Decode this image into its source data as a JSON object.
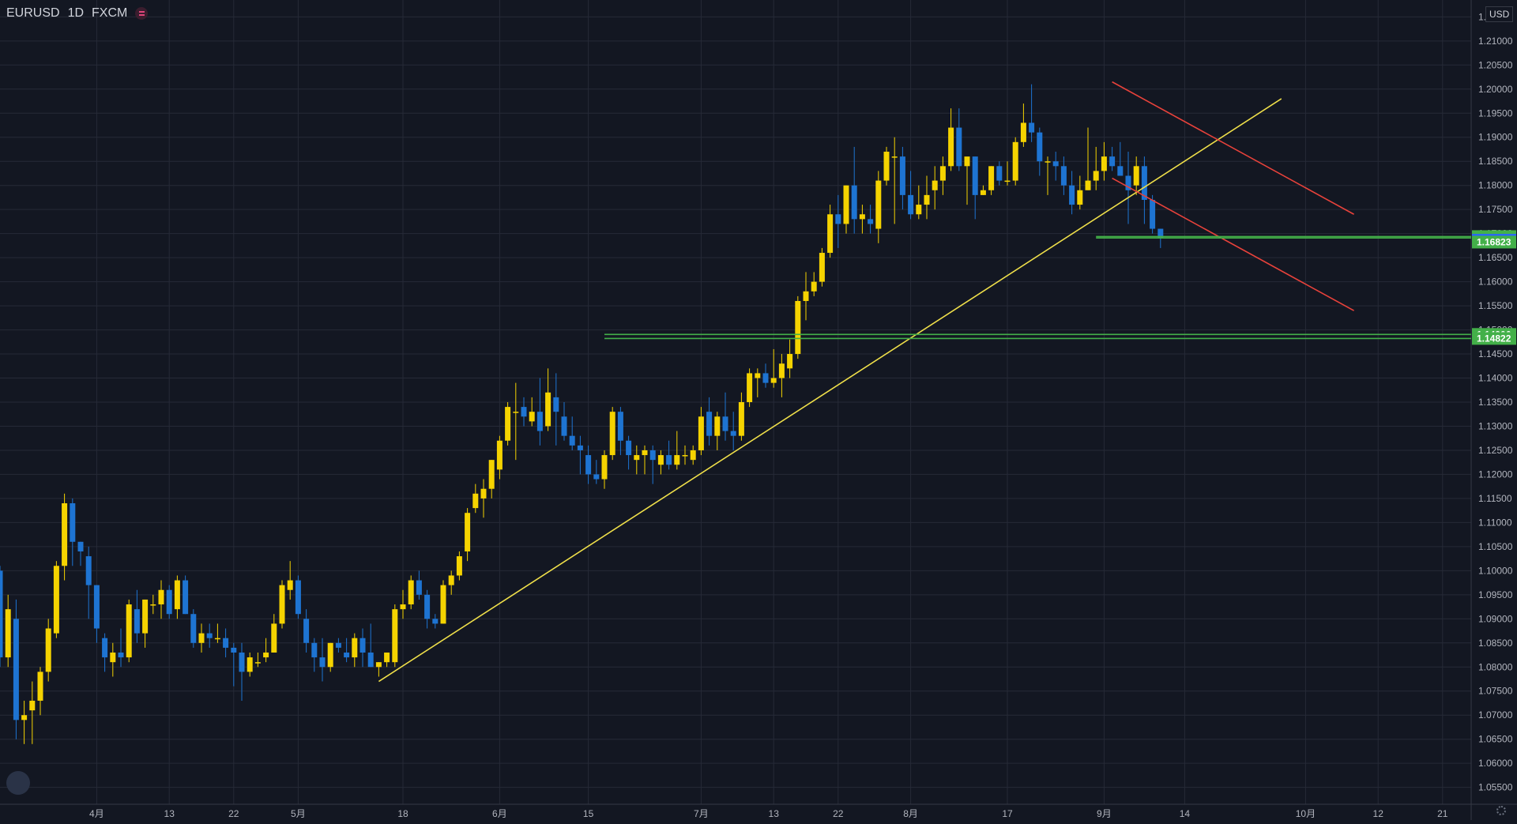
{
  "header": {
    "symbol": "EURUSD",
    "interval": "1D",
    "source": "FXCM",
    "currency_badge": "USD"
  },
  "colors": {
    "background": "#131722",
    "grid": "#262a37",
    "axis_text": "#b2b5be",
    "candle_up": "#f5d300",
    "candle_down": "#1e74d2",
    "trendline": "#f0e04a",
    "channel": "#e8423b",
    "level": "#43b049",
    "current_price": "#2962ff"
  },
  "chart_data": {
    "type": "candlestick",
    "title": "",
    "xlabel": "",
    "ylabel": "",
    "ylim": [
      1.0515,
      1.2185
    ],
    "y_ticks": [
      "1.05500",
      "1.06000",
      "1.06500",
      "1.07000",
      "1.07500",
      "1.08000",
      "1.08500",
      "1.09000",
      "1.09500",
      "1.10000",
      "1.10500",
      "1.11000",
      "1.11500",
      "1.12000",
      "1.12500",
      "1.13000",
      "1.13500",
      "1.14000",
      "1.14500",
      "1.15000",
      "1.15500",
      "1.16000",
      "1.16500",
      "1.17000",
      "1.17500",
      "1.18000",
      "1.18500",
      "1.19000",
      "1.19500",
      "1.20000",
      "1.20500",
      "1.21000",
      "1.21500"
    ],
    "x_tick_labels": [
      {
        "label": "4月",
        "bar": 12
      },
      {
        "label": "13",
        "bar": 21
      },
      {
        "label": "22",
        "bar": 29
      },
      {
        "label": "5月",
        "bar": 37
      },
      {
        "label": "18",
        "bar": 50
      },
      {
        "label": "6月",
        "bar": 62
      },
      {
        "label": "15",
        "bar": 73
      },
      {
        "label": "7月",
        "bar": 87
      },
      {
        "label": "13",
        "bar": 96
      },
      {
        "label": "22",
        "bar": 104
      },
      {
        "label": "8月",
        "bar": 113
      },
      {
        "label": "17",
        "bar": 125
      },
      {
        "label": "9月",
        "bar": 137
      },
      {
        "label": "14",
        "bar": 147
      },
      {
        "label": "10月",
        "bar": 162
      },
      {
        "label": "12",
        "bar": 171
      },
      {
        "label": "21",
        "bar": 179
      }
    ],
    "candles": [
      [
        1.1,
        1.101,
        1.08,
        1.082
      ],
      [
        1.082,
        1.095,
        1.08,
        1.092
      ],
      [
        1.09,
        1.094,
        1.065,
        1.069
      ],
      [
        1.069,
        1.073,
        1.064,
        1.07
      ],
      [
        1.071,
        1.077,
        1.064,
        1.073
      ],
      [
        1.073,
        1.08,
        1.07,
        1.079
      ],
      [
        1.079,
        1.09,
        1.077,
        1.088
      ],
      [
        1.087,
        1.102,
        1.086,
        1.101
      ],
      [
        1.101,
        1.116,
        1.098,
        1.114
      ],
      [
        1.114,
        1.115,
        1.101,
        1.106
      ],
      [
        1.106,
        1.106,
        1.101,
        1.104
      ],
      [
        1.103,
        1.105,
        1.09,
        1.097
      ],
      [
        1.097,
        1.097,
        1.085,
        1.088
      ],
      [
        1.086,
        1.087,
        1.079,
        1.082
      ],
      [
        1.081,
        1.085,
        1.078,
        1.083
      ],
      [
        1.083,
        1.088,
        1.08,
        1.082
      ],
      [
        1.082,
        1.094,
        1.081,
        1.093
      ],
      [
        1.092,
        1.096,
        1.085,
        1.087
      ],
      [
        1.087,
        1.094,
        1.084,
        1.094
      ],
      [
        1.093,
        1.095,
        1.091,
        1.093
      ],
      [
        1.093,
        1.098,
        1.09,
        1.096
      ],
      [
        1.096,
        1.097,
        1.09,
        1.091
      ],
      [
        1.092,
        1.099,
        1.09,
        1.098
      ],
      [
        1.098,
        1.099,
        1.091,
        1.091
      ],
      [
        1.091,
        1.092,
        1.084,
        1.085
      ],
      [
        1.085,
        1.089,
        1.083,
        1.087
      ],
      [
        1.087,
        1.089,
        1.084,
        1.086
      ],
      [
        1.086,
        1.089,
        1.085,
        1.086
      ],
      [
        1.086,
        1.088,
        1.082,
        1.084
      ],
      [
        1.084,
        1.085,
        1.076,
        1.083
      ],
      [
        1.083,
        1.085,
        1.073,
        1.079
      ],
      [
        1.079,
        1.083,
        1.078,
        1.082
      ],
      [
        1.081,
        1.083,
        1.08,
        1.081
      ],
      [
        1.082,
        1.086,
        1.081,
        1.083
      ],
      [
        1.083,
        1.091,
        1.083,
        1.089
      ],
      [
        1.089,
        1.098,
        1.088,
        1.097
      ],
      [
        1.096,
        1.102,
        1.094,
        1.098
      ],
      [
        1.098,
        1.099,
        1.09,
        1.091
      ],
      [
        1.09,
        1.092,
        1.083,
        1.085
      ],
      [
        1.085,
        1.086,
        1.079,
        1.082
      ],
      [
        1.082,
        1.086,
        1.077,
        1.08
      ],
      [
        1.08,
        1.085,
        1.079,
        1.085
      ],
      [
        1.085,
        1.086,
        1.083,
        1.084
      ],
      [
        1.083,
        1.086,
        1.081,
        1.082
      ],
      [
        1.082,
        1.087,
        1.08,
        1.086
      ],
      [
        1.086,
        1.088,
        1.08,
        1.083
      ],
      [
        1.083,
        1.089,
        1.08,
        1.08
      ],
      [
        1.08,
        1.081,
        1.078,
        1.081
      ],
      [
        1.081,
        1.083,
        1.08,
        1.083
      ],
      [
        1.081,
        1.093,
        1.08,
        1.092
      ],
      [
        1.092,
        1.096,
        1.09,
        1.093
      ],
      [
        1.093,
        1.099,
        1.092,
        1.098
      ],
      [
        1.098,
        1.1,
        1.094,
        1.095
      ],
      [
        1.095,
        1.096,
        1.088,
        1.09
      ],
      [
        1.09,
        1.091,
        1.088,
        1.089
      ],
      [
        1.089,
        1.098,
        1.089,
        1.097
      ],
      [
        1.097,
        1.1,
        1.095,
        1.099
      ],
      [
        1.099,
        1.104,
        1.098,
        1.103
      ],
      [
        1.104,
        1.113,
        1.102,
        1.112
      ],
      [
        1.113,
        1.118,
        1.112,
        1.116
      ],
      [
        1.115,
        1.119,
        1.111,
        1.117
      ],
      [
        1.117,
        1.123,
        1.115,
        1.123
      ],
      [
        1.121,
        1.128,
        1.119,
        1.127
      ],
      [
        1.127,
        1.135,
        1.126,
        1.134
      ],
      [
        1.133,
        1.139,
        1.123,
        1.133
      ],
      [
        1.134,
        1.136,
        1.13,
        1.132
      ],
      [
        1.131,
        1.136,
        1.13,
        1.133
      ],
      [
        1.133,
        1.14,
        1.126,
        1.129
      ],
      [
        1.13,
        1.142,
        1.129,
        1.137
      ],
      [
        1.136,
        1.141,
        1.126,
        1.133
      ],
      [
        1.132,
        1.135,
        1.127,
        1.128
      ],
      [
        1.128,
        1.132,
        1.125,
        1.126
      ],
      [
        1.126,
        1.128,
        1.12,
        1.125
      ],
      [
        1.124,
        1.126,
        1.118,
        1.12
      ],
      [
        1.12,
        1.123,
        1.118,
        1.119
      ],
      [
        1.119,
        1.125,
        1.117,
        1.124
      ],
      [
        1.124,
        1.134,
        1.123,
        1.133
      ],
      [
        1.133,
        1.134,
        1.124,
        1.127
      ],
      [
        1.127,
        1.128,
        1.121,
        1.124
      ],
      [
        1.123,
        1.126,
        1.12,
        1.124
      ],
      [
        1.124,
        1.126,
        1.12,
        1.125
      ],
      [
        1.125,
        1.126,
        1.118,
        1.123
      ],
      [
        1.122,
        1.125,
        1.12,
        1.124
      ],
      [
        1.124,
        1.127,
        1.121,
        1.122
      ],
      [
        1.122,
        1.129,
        1.121,
        1.124
      ],
      [
        1.124,
        1.126,
        1.122,
        1.124
      ],
      [
        1.123,
        1.126,
        1.122,
        1.125
      ],
      [
        1.125,
        1.134,
        1.124,
        1.132
      ],
      [
        1.133,
        1.136,
        1.126,
        1.128
      ],
      [
        1.128,
        1.133,
        1.125,
        1.132
      ],
      [
        1.132,
        1.137,
        1.127,
        1.129
      ],
      [
        1.129,
        1.133,
        1.125,
        1.128
      ],
      [
        1.128,
        1.137,
        1.127,
        1.135
      ],
      [
        1.135,
        1.142,
        1.134,
        1.141
      ],
      [
        1.14,
        1.142,
        1.136,
        1.141
      ],
      [
        1.141,
        1.143,
        1.138,
        1.139
      ],
      [
        1.139,
        1.146,
        1.138,
        1.14
      ],
      [
        1.14,
        1.145,
        1.136,
        1.143
      ],
      [
        1.142,
        1.148,
        1.14,
        1.145
      ],
      [
        1.145,
        1.157,
        1.144,
        1.156
      ],
      [
        1.156,
        1.162,
        1.152,
        1.158
      ],
      [
        1.158,
        1.162,
        1.157,
        1.16
      ],
      [
        1.16,
        1.167,
        1.159,
        1.166
      ],
      [
        1.166,
        1.176,
        1.165,
        1.174
      ],
      [
        1.174,
        1.178,
        1.167,
        1.172
      ],
      [
        1.172,
        1.18,
        1.17,
        1.18
      ],
      [
        1.18,
        1.188,
        1.17,
        1.173
      ],
      [
        1.173,
        1.176,
        1.17,
        1.174
      ],
      [
        1.173,
        1.176,
        1.17,
        1.172
      ],
      [
        1.171,
        1.183,
        1.168,
        1.181
      ],
      [
        1.181,
        1.188,
        1.18,
        1.187
      ],
      [
        1.186,
        1.19,
        1.172,
        1.186
      ],
      [
        1.186,
        1.188,
        1.175,
        1.178
      ],
      [
        1.178,
        1.183,
        1.173,
        1.174
      ],
      [
        1.174,
        1.18,
        1.173,
        1.176
      ],
      [
        1.176,
        1.182,
        1.173,
        1.178
      ],
      [
        1.179,
        1.184,
        1.175,
        1.181
      ],
      [
        1.181,
        1.186,
        1.178,
        1.184
      ],
      [
        1.184,
        1.196,
        1.183,
        1.192
      ],
      [
        1.192,
        1.196,
        1.183,
        1.184
      ],
      [
        1.184,
        1.185,
        1.176,
        1.186
      ],
      [
        1.186,
        1.186,
        1.173,
        1.178
      ],
      [
        1.178,
        1.18,
        1.178,
        1.179
      ],
      [
        1.179,
        1.184,
        1.178,
        1.184
      ],
      [
        1.184,
        1.185,
        1.18,
        1.181
      ],
      [
        1.181,
        1.185,
        1.18,
        1.181
      ],
      [
        1.181,
        1.19,
        1.18,
        1.189
      ],
      [
        1.189,
        1.197,
        1.188,
        1.193
      ],
      [
        1.193,
        1.201,
        1.189,
        1.191
      ],
      [
        1.191,
        1.192,
        1.182,
        1.185
      ],
      [
        1.185,
        1.186,
        1.178,
        1.185
      ],
      [
        1.185,
        1.187,
        1.181,
        1.184
      ],
      [
        1.184,
        1.186,
        1.178,
        1.18
      ],
      [
        1.18,
        1.183,
        1.174,
        1.176
      ],
      [
        1.176,
        1.182,
        1.175,
        1.179
      ],
      [
        1.179,
        1.192,
        1.179,
        1.181
      ],
      [
        1.181,
        1.188,
        1.179,
        1.183
      ],
      [
        1.183,
        1.189,
        1.181,
        1.186
      ],
      [
        1.186,
        1.188,
        1.183,
        1.184
      ],
      [
        1.184,
        1.189,
        1.182,
        1.182
      ],
      [
        1.182,
        1.187,
        1.172,
        1.179
      ],
      [
        1.18,
        1.186,
        1.178,
        1.184
      ],
      [
        1.184,
        1.186,
        1.172,
        1.177
      ],
      [
        1.177,
        1.178,
        1.17,
        1.171
      ],
      [
        1.171,
        1.171,
        1.167,
        1.169
      ]
    ],
    "trendline": {
      "from": {
        "bar": 47,
        "price": 1.077
      },
      "to": {
        "bar": 159,
        "price": 1.198
      }
    },
    "channel_upper": {
      "from": {
        "bar": 138,
        "price": 1.2015
      },
      "to": {
        "bar": 168,
        "price": 1.174
      }
    },
    "channel_lower": {
      "from": {
        "bar": 138,
        "price": 1.1815
      },
      "to": {
        "bar": 168,
        "price": 1.154
      }
    },
    "levels": [
      {
        "price": 1.16938,
        "from_bar": 136,
        "label": "1.16938"
      },
      {
        "price": 1.16909,
        "from_bar": 136,
        "label": "1.16909"
      },
      {
        "price": 1.14906,
        "from_bar": 75,
        "label": "1.14906"
      },
      {
        "price": 1.14822,
        "from_bar": 75,
        "label": "1.14822"
      }
    ],
    "price_labels": [
      {
        "price": 1.16938,
        "label": "1.16938",
        "kind": "level"
      },
      {
        "price": 1.16909,
        "label": "1.16909",
        "kind": "level"
      },
      {
        "price": 1.16861,
        "label": "1.16861",
        "kind": "current"
      },
      {
        "price": 1.16823,
        "label": "1.16823",
        "kind": "level"
      },
      {
        "price": 1.14906,
        "label": "1.14906",
        "kind": "level"
      },
      {
        "price": 1.14822,
        "label": "1.14822",
        "kind": "level"
      }
    ]
  }
}
